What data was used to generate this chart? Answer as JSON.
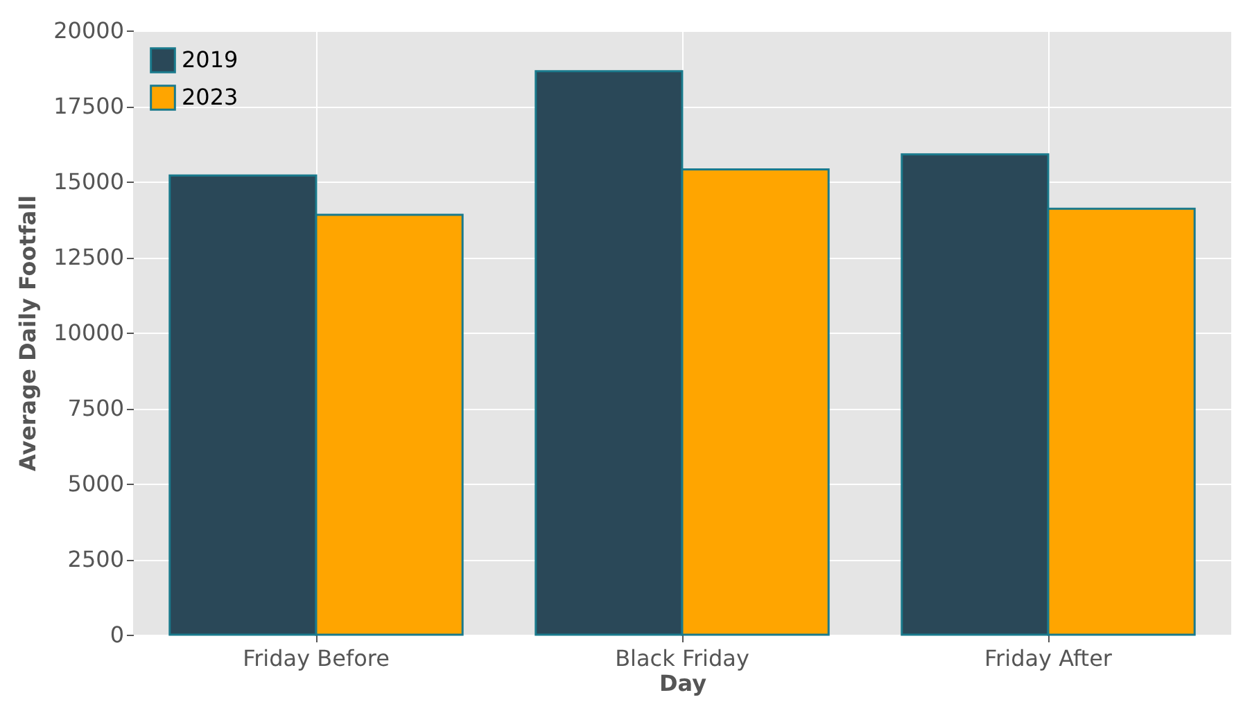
{
  "chart_data": {
    "type": "bar",
    "xlabel": "Day",
    "ylabel": "Average Daily Footfall",
    "categories": [
      "Friday Before",
      "Black Friday",
      "Friday After"
    ],
    "series": [
      {
        "name": "2019",
        "color": "#2a4858",
        "values": [
          15200,
          18650,
          15900
        ]
      },
      {
        "name": "2023",
        "color": "#ffa500",
        "values": [
          13900,
          15400,
          14100
        ]
      }
    ],
    "ylim": [
      0,
      20000
    ],
    "yticks": [
      0,
      2500,
      5000,
      7500,
      10000,
      12500,
      15000,
      17500,
      20000
    ],
    "grid": true,
    "legend": "top left"
  }
}
